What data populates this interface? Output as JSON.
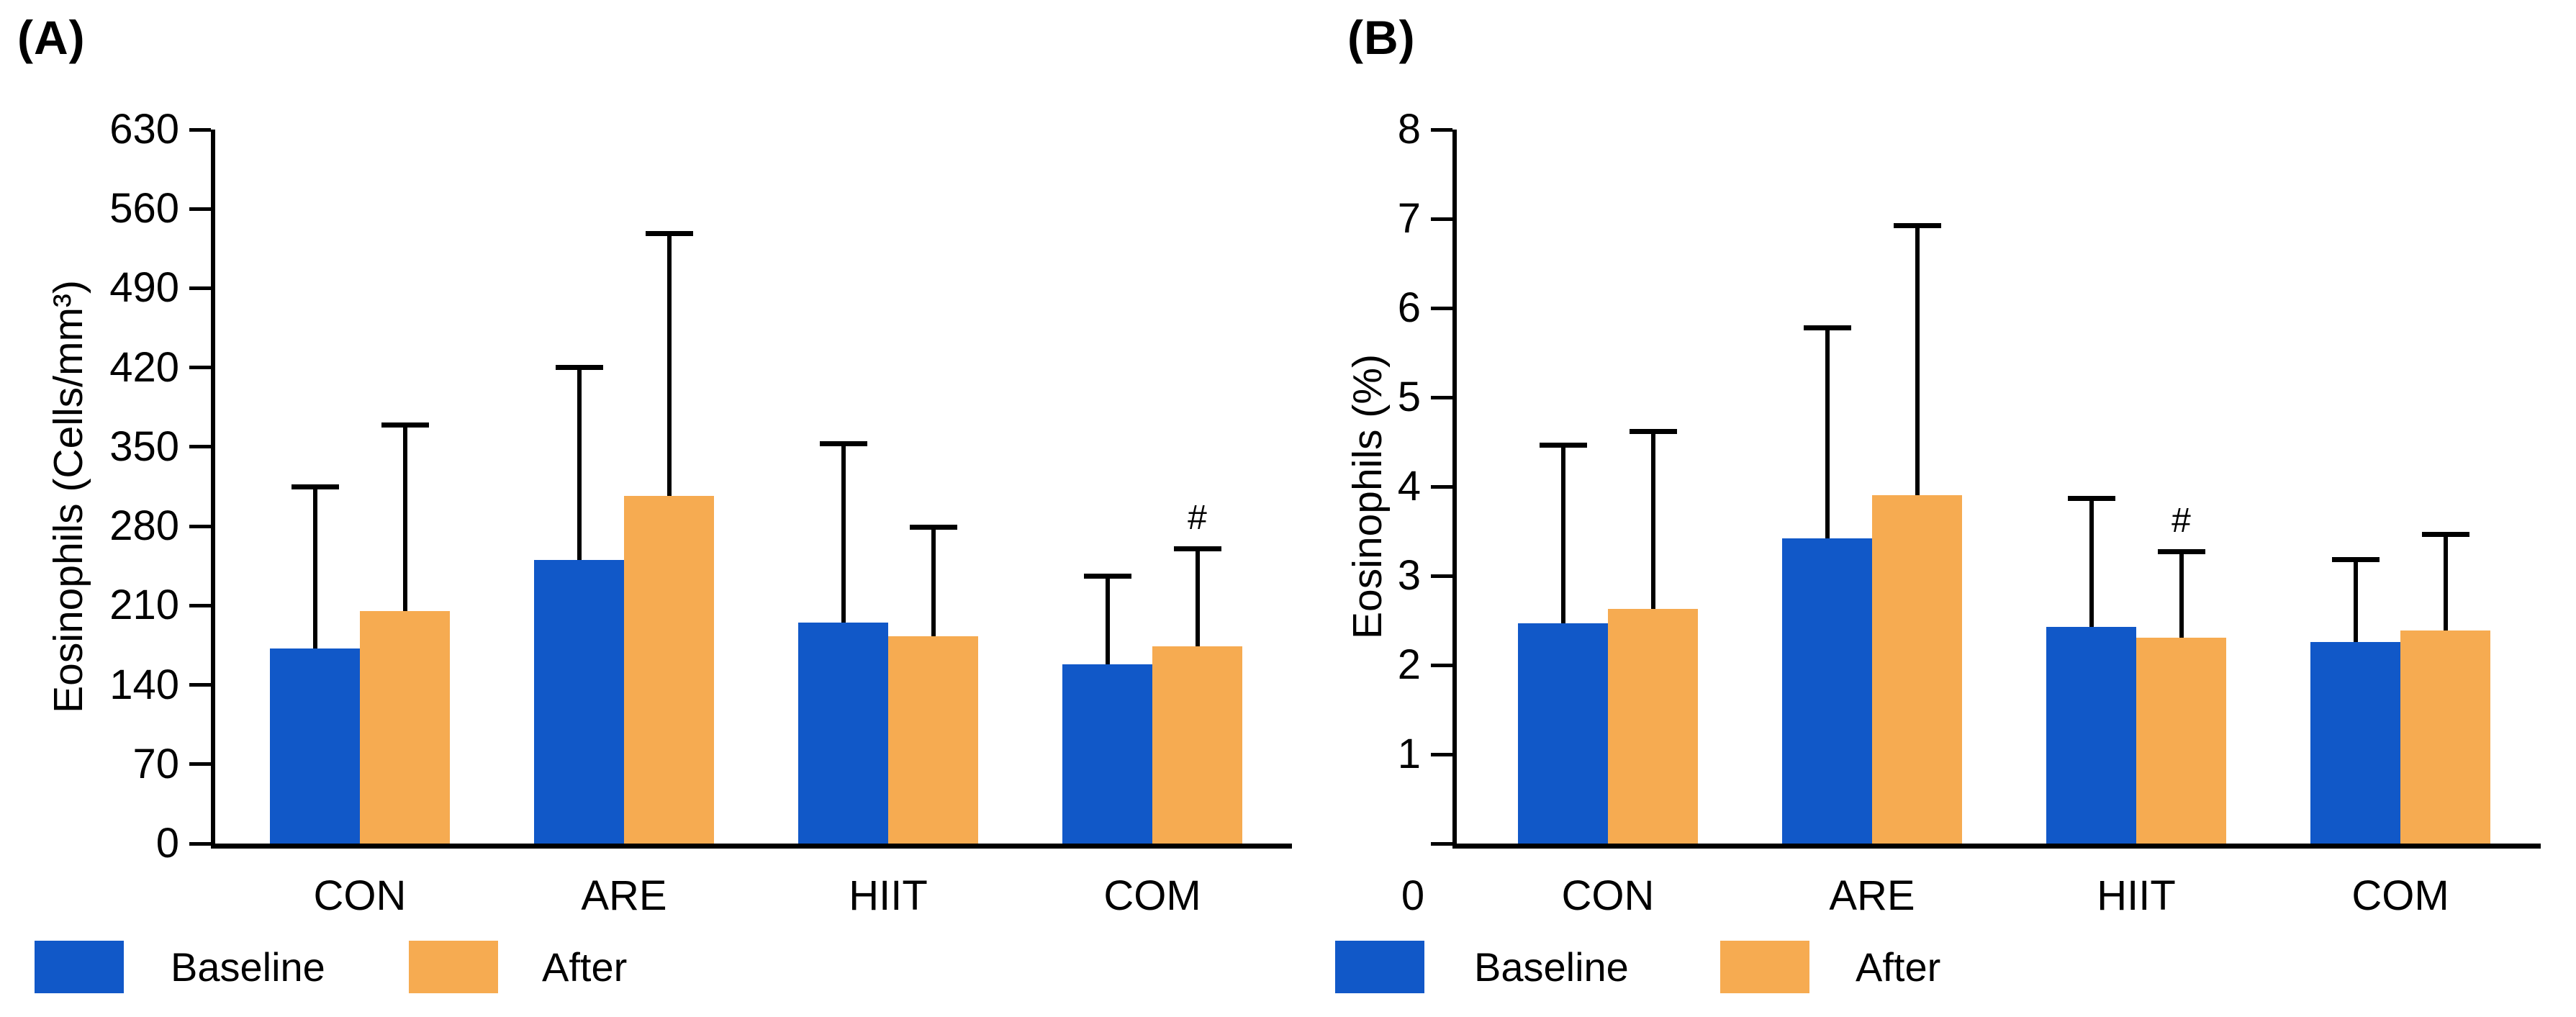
{
  "chart_data": [
    {
      "type": "bar",
      "panel_label": "(A)",
      "ylabel": "Eosinophils (Cells/mm³)",
      "xlabel": "",
      "categories": [
        "CON",
        "ARE",
        "HIIT",
        "COM"
      ],
      "series": [
        {
          "name": "Baseline",
          "color": "#1158C8",
          "values": [
            172,
            250,
            195,
            158
          ],
          "error_upper": [
            143,
            170,
            158,
            78
          ]
        },
        {
          "name": "After",
          "color": "#F6AB51",
          "values": [
            205,
            307,
            183,
            174
          ],
          "error_upper": [
            164,
            231,
            96,
            86
          ]
        }
      ],
      "ylim": [
        0,
        630
      ],
      "yticks": [
        0,
        70,
        140,
        210,
        280,
        350,
        420,
        490,
        560,
        630
      ],
      "grid": "off",
      "legend_position": "bottom",
      "annotations": [
        {
          "text": "#",
          "category": "COM",
          "series": "After"
        }
      ]
    },
    {
      "type": "bar",
      "panel_label": "(B)",
      "ylabel": "Eosinophils (%)",
      "xlabel": "",
      "categories": [
        "CON",
        "ARE",
        "HIIT",
        "COM"
      ],
      "series": [
        {
          "name": "Baseline",
          "color": "#1158C8",
          "values": [
            2.47,
            3.42,
            2.43,
            2.26
          ],
          "error_upper": [
            1.99,
            2.36,
            1.44,
            0.92
          ]
        },
        {
          "name": "After",
          "color": "#F6AB51",
          "values": [
            2.63,
            3.9,
            2.31,
            2.39
          ],
          "error_upper": [
            1.99,
            3.02,
            0.96,
            1.07
          ]
        }
      ],
      "ylim": [
        0,
        8
      ],
      "yticks": [
        0,
        1,
        2,
        3,
        4,
        5,
        6,
        7,
        8
      ],
      "grid": "off",
      "legend_position": "bottom",
      "annotations": [
        {
          "text": "#",
          "category": "HIIT",
          "series": "After"
        }
      ]
    }
  ]
}
